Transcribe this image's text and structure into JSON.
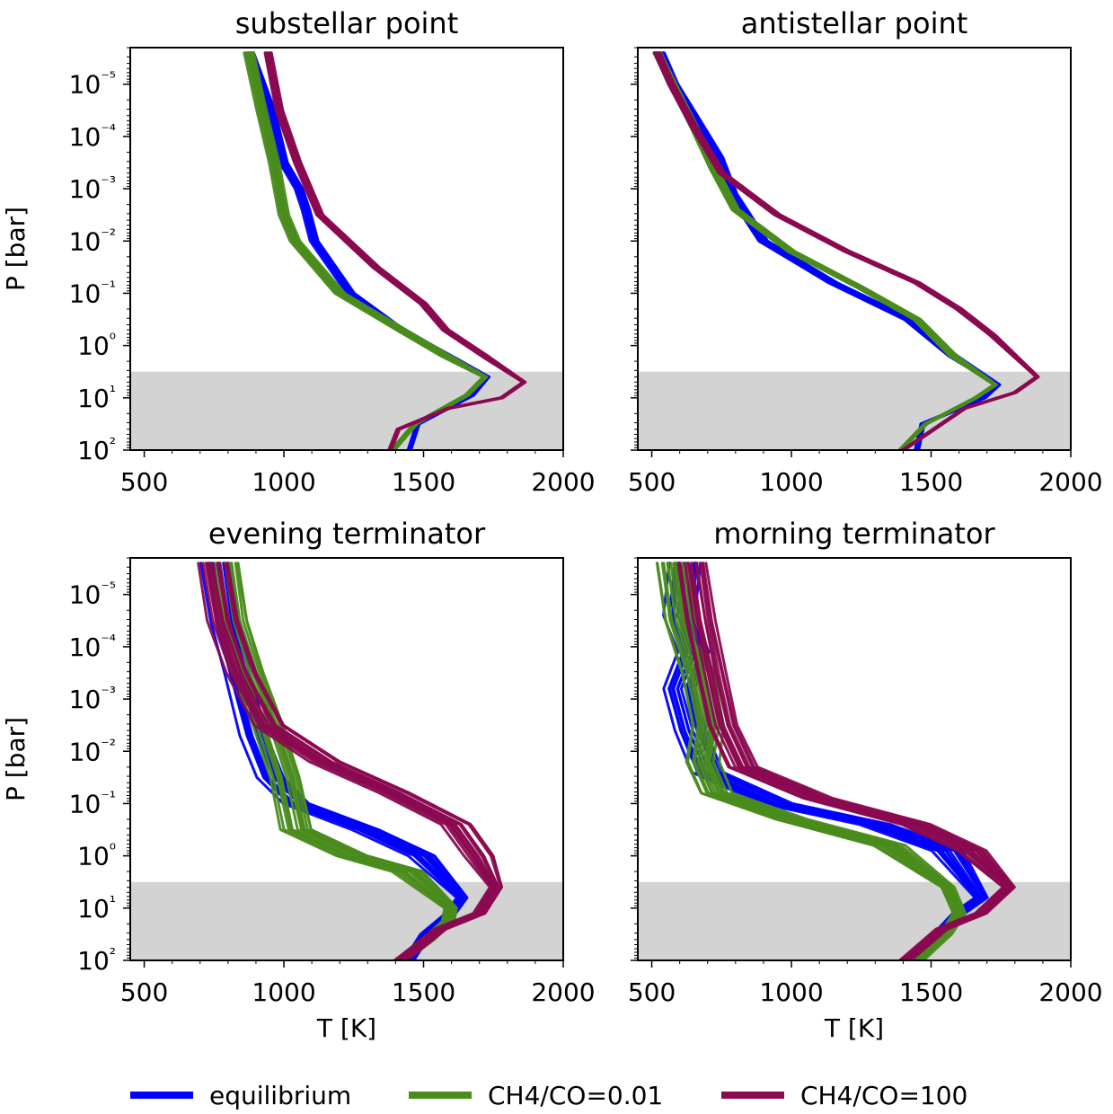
{
  "chart_data": [
    {
      "type": "line",
      "title": "substellar point",
      "xlabel": "",
      "ylabel": "P [bar]",
      "xlim": [
        450,
        2000
      ],
      "yscale": "log",
      "ylim_log10": [
        2,
        -5.7
      ],
      "ylim_inverted": true,
      "xticks": [
        "500",
        "1000",
        "1500",
        "2000"
      ],
      "yticks": [
        "10⁻⁵",
        "10⁻⁴",
        "10⁻³",
        "10⁻²",
        "10⁻¹",
        "10⁰",
        "10¹",
        "10²"
      ],
      "shaded_region_log10P": [
        0.5,
        2
      ],
      "series": [
        {
          "color": "#0000ff",
          "n": 10,
          "spread": 14,
          "x": [
            880,
            955,
            1000,
            1055,
            1080,
            1110,
            1240,
            1420,
            1590,
            1730,
            1675,
            1480,
            1450
          ],
          "logP": [
            -5.6,
            -4.5,
            -3.5,
            -3.0,
            -2.6,
            -2.0,
            -1.0,
            -0.3,
            0.2,
            0.6,
            0.95,
            1.5,
            2.0
          ]
        },
        {
          "color": "#4a8c1c",
          "n": 10,
          "spread": 16,
          "x": [
            875,
            920,
            965,
            1000,
            1040,
            1200,
            1420,
            1580,
            1720,
            1655,
            1470,
            1390
          ],
          "logP": [
            -5.6,
            -4.5,
            -3.5,
            -2.5,
            -2.0,
            -1.0,
            -0.3,
            0.2,
            0.6,
            0.95,
            1.5,
            2.0
          ]
        },
        {
          "color": "#8b0a50",
          "n": 10,
          "spread": 12,
          "x": [
            945,
            985,
            1050,
            1130,
            1330,
            1500,
            1580,
            1720,
            1860,
            1780,
            1590,
            1410,
            1380
          ],
          "logP": [
            -5.6,
            -4.5,
            -3.5,
            -2.5,
            -1.5,
            -0.8,
            -0.3,
            0.2,
            0.7,
            1.0,
            1.2,
            1.6,
            2.0
          ]
        }
      ]
    },
    {
      "type": "line",
      "title": "antistellar point",
      "xlabel": "",
      "ylabel": "",
      "xlim": [
        450,
        2000
      ],
      "yscale": "log",
      "ylim_log10": [
        2,
        -5.7
      ],
      "ylim_inverted": true,
      "xticks": [
        "500",
        "1000",
        "1500",
        "2000"
      ],
      "yticks": [],
      "shaded_region_log10P": [
        0.5,
        2
      ],
      "series": [
        {
          "color": "#0000ff",
          "n": 10,
          "spread": 18,
          "x": [
            530,
            580,
            660,
            740,
            790,
            900,
            1150,
            1420,
            1580,
            1740,
            1690,
            1470,
            1450
          ],
          "logP": [
            -5.6,
            -5.0,
            -4.3,
            -3.6,
            -2.9,
            -2.0,
            -1.2,
            -0.5,
            0.2,
            0.75,
            1.0,
            1.5,
            2.0
          ]
        },
        {
          "color": "#4a8c1c",
          "n": 10,
          "spread": 14,
          "x": [
            520,
            575,
            650,
            720,
            800,
            1000,
            1250,
            1450,
            1580,
            1730,
            1660,
            1480,
            1390
          ],
          "logP": [
            -5.6,
            -5.0,
            -4.2,
            -3.4,
            -2.6,
            -1.8,
            -1.1,
            -0.5,
            0.2,
            0.75,
            1.0,
            1.5,
            2.0
          ]
        },
        {
          "color": "#8b0a50",
          "n": 10,
          "spread": 12,
          "x": [
            520,
            570,
            650,
            750,
            950,
            1200,
            1450,
            1600,
            1720,
            1880,
            1800,
            1620,
            1400
          ],
          "logP": [
            -5.6,
            -5.0,
            -4.2,
            -3.3,
            -2.5,
            -1.8,
            -1.2,
            -0.7,
            -0.2,
            0.6,
            0.9,
            1.2,
            2.0
          ]
        }
      ]
    },
    {
      "type": "line",
      "title": "evening terminator",
      "xlabel": "T [K]",
      "ylabel": "P [bar]",
      "xlim": [
        450,
        2000
      ],
      "yscale": "log",
      "ylim_log10": [
        2,
        -5.7
      ],
      "ylim_inverted": true,
      "xticks": [
        "500",
        "1000",
        "1500",
        "2000"
      ],
      "yticks": [
        "10⁻⁵",
        "10⁻⁴",
        "10⁻³",
        "10⁻²",
        "10⁻¹",
        "10⁰",
        "10¹",
        "10²"
      ],
      "shaded_region_log10P": [
        0.5,
        2
      ],
      "series": [
        {
          "color": "#0000ff",
          "n": 14,
          "spread": 45,
          "x": [
            760,
            790,
            840,
            900,
            960,
            1050,
            1300,
            1500,
            1640,
            1600,
            1510,
            1450
          ],
          "logP": [
            -5.6,
            -4.5,
            -3.5,
            -2.3,
            -1.5,
            -1.0,
            -0.5,
            0.0,
            0.8,
            1.1,
            1.5,
            2.0
          ]
        },
        {
          "color": "#4a8c1c",
          "n": 14,
          "spread": 50,
          "x": [
            790,
            820,
            880,
            950,
            1010,
            1050,
            1250,
            1450,
            1600,
            1590,
            1520,
            1420
          ],
          "logP": [
            -5.6,
            -4.5,
            -3.5,
            -2.5,
            -1.5,
            -0.5,
            0.0,
            0.3,
            1.0,
            1.25,
            1.6,
            2.0
          ]
        },
        {
          "color": "#8b0a50",
          "n": 14,
          "spread": 48,
          "x": [
            750,
            785,
            850,
            950,
            1150,
            1400,
            1620,
            1700,
            1760,
            1700,
            1560,
            1420
          ],
          "logP": [
            -5.6,
            -4.5,
            -3.5,
            -2.5,
            -1.8,
            -1.2,
            -0.6,
            0.0,
            0.6,
            1.1,
            1.4,
            2.0
          ]
        }
      ]
    },
    {
      "type": "line",
      "title": "morning terminator",
      "xlabel": "T [K]",
      "ylabel": "",
      "xlim": [
        450,
        2000
      ],
      "yscale": "log",
      "ylim_log10": [
        2,
        -5.7
      ],
      "ylim_inverted": true,
      "xticks": [
        "500",
        "1000",
        "1500",
        "2000"
      ],
      "yticks": [],
      "shaded_region_log10P": [
        0.5,
        2
      ],
      "series": [
        {
          "color": "#0000ff",
          "n": 14,
          "spread": 55,
          "x": [
            620,
            600,
            650,
            600,
            640,
            700,
            950,
            1300,
            1560,
            1680,
            1600,
            1530,
            1450
          ],
          "logP": [
            -5.6,
            -4.6,
            -3.9,
            -3.2,
            -2.4,
            -1.6,
            -1.0,
            -0.6,
            -0.1,
            0.8,
            1.1,
            1.5,
            2.0
          ]
        },
        {
          "color": "#4a8c1c",
          "n": 14,
          "spread": 50,
          "x": [
            570,
            600,
            660,
            700,
            680,
            730,
            1000,
            1350,
            1560,
            1600,
            1550,
            1450
          ],
          "logP": [
            -5.6,
            -4.5,
            -3.5,
            -2.5,
            -1.8,
            -1.2,
            -0.7,
            -0.2,
            0.6,
            1.1,
            1.5,
            2.0
          ]
        },
        {
          "color": "#8b0a50",
          "n": 14,
          "spread": 55,
          "x": [
            650,
            680,
            720,
            760,
            830,
            1100,
            1450,
            1650,
            1780,
            1680,
            1540,
            1410
          ],
          "logP": [
            -5.6,
            -4.5,
            -3.5,
            -2.5,
            -1.7,
            -1.1,
            -0.6,
            -0.1,
            0.6,
            1.1,
            1.4,
            2.0
          ]
        }
      ]
    }
  ],
  "legend": {
    "placement": "bottom-center",
    "items": [
      {
        "label": "equilibrium",
        "color": "#0000ff"
      },
      {
        "label": "CH4/CO=0.01",
        "color": "#4a8c1c"
      },
      {
        "label": "CH4/CO=100",
        "color": "#8b0a50"
      }
    ]
  }
}
